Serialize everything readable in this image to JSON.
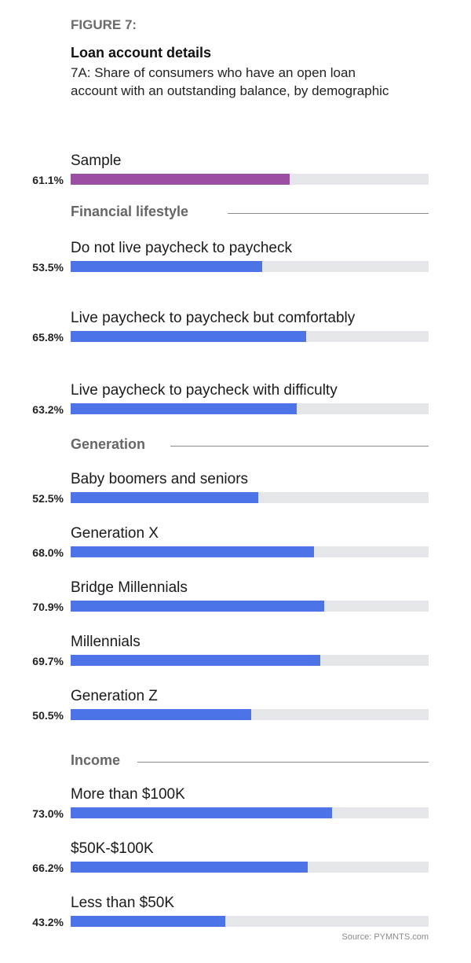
{
  "figure_label": "FIGURE 7:",
  "title": "Loan account details",
  "subtitle": "7A: Share of consumers who have an open loan account with an outstanding balance, by demographic",
  "source": "Source: PYMNTS.com",
  "colors": {
    "sample": "#9b4fa3",
    "bar": "#4d74e6",
    "track": "#e5e6ea"
  },
  "chart_data": {
    "type": "bar",
    "orientation": "horizontal",
    "title": "Loan account details",
    "subtitle": "7A: Share of consumers who have an open loan account with an outstanding balance, by demographic",
    "xlim": [
      0,
      100
    ],
    "unit": "%",
    "groups": [
      {
        "name": "",
        "items": [
          {
            "label": "Sample",
            "value": 61.1,
            "display": "61.1%",
            "highlight": true
          }
        ]
      },
      {
        "name": "Financial lifestyle",
        "items": [
          {
            "label": "Do not live paycheck to paycheck",
            "value": 53.5,
            "display": "53.5%"
          },
          {
            "label": "Live paycheck to paycheck but comfortably",
            "value": 65.8,
            "display": "65.8%"
          },
          {
            "label": "Live paycheck to paycheck with difficulty",
            "value": 63.2,
            "display": "63.2%"
          }
        ]
      },
      {
        "name": "Generation",
        "items": [
          {
            "label": "Baby boomers and seniors",
            "value": 52.5,
            "display": "52.5%"
          },
          {
            "label": "Generation X",
            "value": 68.0,
            "display": "68.0%"
          },
          {
            "label": "Bridge Millennials",
            "value": 70.9,
            "display": "70.9%"
          },
          {
            "label": "Millennials",
            "value": 69.7,
            "display": "69.7%"
          },
          {
            "label": "Generation Z",
            "value": 50.5,
            "display": "50.5%"
          }
        ]
      },
      {
        "name": "Income",
        "items": [
          {
            "label": "More than $100K",
            "value": 73.0,
            "display": "73.0%"
          },
          {
            "label": "$50K-$100K",
            "value": 66.2,
            "display": "66.2%"
          },
          {
            "label": "Less than $50K",
            "value": 43.2,
            "display": "43.2%"
          }
        ]
      }
    ]
  }
}
